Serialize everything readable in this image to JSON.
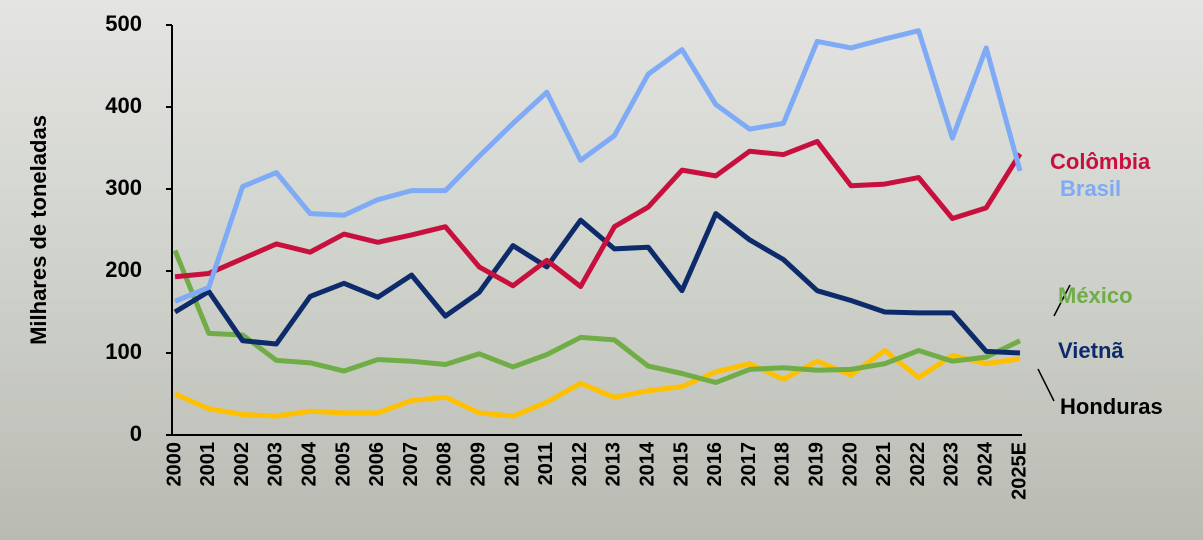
{
  "chart_data": {
    "type": "line",
    "y_label": "Milhares de toneladas",
    "categories": [
      "2000",
      "2001",
      "2002",
      "2003",
      "2004",
      "2005",
      "2006",
      "2007",
      "2008",
      "2009",
      "2010",
      "2011",
      "2012",
      "2013",
      "2014",
      "2015",
      "2016",
      "2017",
      "2018",
      "2019",
      "2020",
      "2021",
      "2022",
      "2023",
      "2024",
      "2025E"
    ],
    "ylim": [
      0,
      500
    ],
    "yticks": [
      0,
      100,
      200,
      300,
      400,
      500
    ],
    "series": [
      {
        "name": "Colômbia",
        "color": "#c8103e",
        "label_color": "#c8103e",
        "values": [
          193,
          197,
          215,
          233,
          223,
          245,
          235,
          244,
          254,
          205,
          182,
          213,
          181,
          254,
          278,
          323,
          316,
          346,
          342,
          358,
          304,
          306,
          314,
          264,
          277,
          343
        ]
      },
      {
        "name": "Brasil",
        "color": "#7faaf5",
        "label_color": "#7faaf5",
        "values": [
          163,
          180,
          303,
          320,
          270,
          268,
          287,
          298,
          298,
          340,
          380,
          418,
          335,
          365,
          440,
          470,
          403,
          373,
          380,
          480,
          472,
          483,
          493,
          362,
          472,
          322
        ]
      },
      {
        "name": "México",
        "color": "#70ad47",
        "label_color": "#70ad47",
        "values": [
          225,
          124,
          122,
          91,
          88,
          78,
          92,
          90,
          86,
          99,
          83,
          98,
          119,
          116,
          84,
          75,
          64,
          80,
          82,
          79,
          80,
          87,
          103,
          90,
          95,
          115
        ]
      },
      {
        "name": "Vietnã",
        "color": "#0d2a6b",
        "label_color": "#0d2a6b",
        "values": [
          150,
          175,
          115,
          111,
          169,
          185,
          168,
          195,
          145,
          174,
          231,
          205,
          262,
          227,
          229,
          176,
          270,
          238,
          214,
          176,
          164,
          150,
          149,
          149,
          102,
          100
        ]
      },
      {
        "name": "Honduras",
        "color": "#ffc000",
        "label_color": "#000000",
        "values": [
          50,
          32,
          25,
          23,
          29,
          27,
          27,
          42,
          46,
          27,
          23,
          40,
          63,
          46,
          54,
          59,
          77,
          87,
          68,
          90,
          73,
          103,
          70,
          97,
          87,
          93
        ]
      }
    ]
  }
}
